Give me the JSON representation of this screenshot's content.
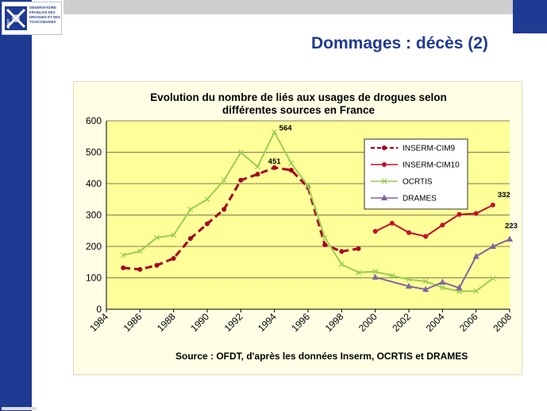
{
  "logo": {
    "initials": "OFDT",
    "name_lines": "OBSERVATOIRE\nFRANÇAIS DES\nDROGUES ET DES\nTOXICOMANIES"
  },
  "slide": {
    "title": "Dommages : décès (2)"
  },
  "colors": {
    "brand_blue": "#1f3a93",
    "plot_bg": "#ffff99",
    "inserm_cim9": "#a50021",
    "inserm_cim10": "#c0102a",
    "ocrtis": "#9bcc55",
    "drames": "#8064a2"
  },
  "chart_data": {
    "type": "line",
    "title": "Evolution du nombre de liés aux usages de drogues selon différentes sources en France",
    "title_lines": [
      "Evolution du nombre de liés aux usages de drogues selon",
      "différentes sources en France"
    ],
    "xlim": [
      1984,
      2008
    ],
    "ylim": [
      0,
      600
    ],
    "x_ticks": [
      1984,
      1986,
      1988,
      1990,
      1992,
      1994,
      1996,
      1998,
      2000,
      2002,
      2004,
      2006,
      2008
    ],
    "y_ticks": [
      0,
      100,
      200,
      300,
      400,
      500,
      600
    ],
    "grid": "horizontal",
    "legend_position": "center-right",
    "source": "Source : OFDT, d'après les données Inserm, OCRTIS et DRAMES",
    "series": [
      {
        "name": "INSERM-CIM9",
        "style": "dashed",
        "marker": "circle",
        "color": "#a50021",
        "x": [
          1985,
          1986,
          1987,
          1988,
          1989,
          1990,
          1991,
          1992,
          1993,
          1994,
          1995,
          1996,
          1997,
          1998,
          1999
        ],
        "y": [
          132,
          127,
          140,
          162,
          225,
          272,
          318,
          411,
          430,
          451,
          443,
          388,
          205,
          184,
          193
        ]
      },
      {
        "name": "INSERM-CIM10",
        "style": "solid",
        "marker": "circle",
        "color": "#c0102a",
        "x": [
          2000,
          2001,
          2002,
          2003,
          2004,
          2005,
          2006,
          2007
        ],
        "y": [
          248,
          274,
          244,
          232,
          268,
          302,
          305,
          332
        ]
      },
      {
        "name": "OCRTIS",
        "style": "solid",
        "marker": "x",
        "color": "#9bcc55",
        "x": [
          1985,
          1986,
          1987,
          1988,
          1989,
          1990,
          1991,
          1992,
          1993,
          1994,
          1995,
          1996,
          1997,
          1998,
          1999,
          2000,
          2001,
          2002,
          2003,
          2004,
          2005,
          2006,
          2007
        ],
        "y": [
          172,
          185,
          228,
          236,
          318,
          350,
          411,
          499,
          454,
          564,
          465,
          393,
          228,
          143,
          117,
          120,
          107,
          95,
          89,
          69,
          57,
          58,
          98
        ]
      },
      {
        "name": "DRAMES",
        "style": "solid",
        "marker": "triangle",
        "color": "#8064a2",
        "x": [
          2000,
          2002,
          2003,
          2004,
          2005,
          2006,
          2007,
          2008
        ],
        "y": [
          102,
          73,
          63,
          86,
          68,
          168,
          200,
          223
        ]
      }
    ],
    "annotations": [
      {
        "text": "564",
        "x": 1994,
        "y": 564
      },
      {
        "text": "451",
        "x": 1994,
        "y": 451
      },
      {
        "text": "332",
        "x": 2007,
        "y": 332
      },
      {
        "text": "223",
        "x": 2008,
        "y": 223
      }
    ]
  }
}
